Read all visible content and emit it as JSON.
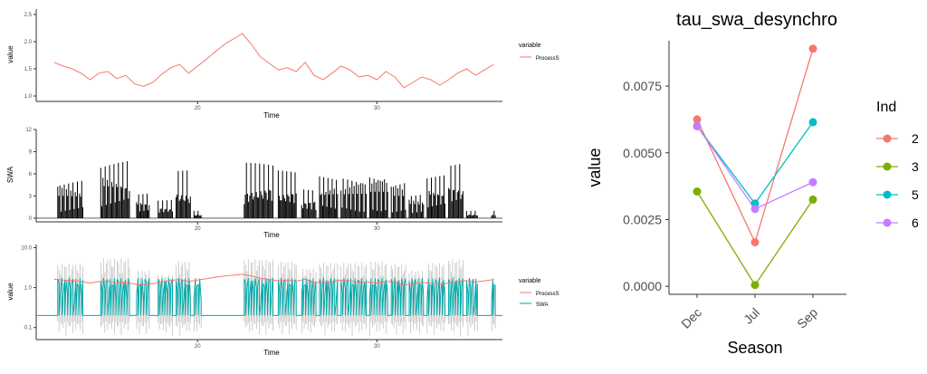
{
  "colors": {
    "processS": "#F8766D",
    "swa": "#00A9A9",
    "ind2": "#F8766D",
    "ind3": "#7CAE00",
    "ind5": "#00BFC4",
    "ind6": "#C77CFF",
    "axis": "#333333",
    "tick_text": "#4d4d4d"
  },
  "chart_data": [
    {
      "type": "line",
      "id": "panel-process-s",
      "xlabel": "Time",
      "ylabel": "value",
      "xlim": [
        11,
        37
      ],
      "ylim": [
        0.9,
        2.6
      ],
      "x_ticks": [
        "20",
        "30"
      ],
      "y_ticks": [
        "1.0",
        "1.5",
        "2.0",
        "2.5"
      ],
      "legend": {
        "title": "variable",
        "entries": [
          "ProcessS"
        ],
        "placement": "right"
      },
      "grid": false,
      "series": [
        {
          "name": "ProcessS",
          "x": [
            12.0,
            12.5,
            13.0,
            13.5,
            14.0,
            14.5,
            15.0,
            15.5,
            16.0,
            16.5,
            17.0,
            17.5,
            18.0,
            18.5,
            19.0,
            19.5,
            20.0,
            20.5,
            21.0,
            21.5,
            22.0,
            22.5,
            23.0,
            23.5,
            24.0,
            24.5,
            25.0,
            25.5,
            26.0,
            26.5,
            27.0,
            27.5,
            28.0,
            28.5,
            29.0,
            29.5,
            30.0,
            30.5,
            31.0,
            31.5,
            32.0,
            32.5,
            33.0,
            33.5,
            34.0,
            34.5,
            35.0,
            35.5,
            36.0,
            36.5
          ],
          "values": [
            1.62,
            1.55,
            1.5,
            1.42,
            1.3,
            1.42,
            1.45,
            1.32,
            1.38,
            1.22,
            1.18,
            1.25,
            1.4,
            1.52,
            1.58,
            1.42,
            1.55,
            1.68,
            1.82,
            1.95,
            2.05,
            2.15,
            1.95,
            1.72,
            1.6,
            1.48,
            1.52,
            1.45,
            1.62,
            1.38,
            1.3,
            1.42,
            1.55,
            1.48,
            1.35,
            1.38,
            1.3,
            1.45,
            1.35,
            1.15,
            1.25,
            1.35,
            1.3,
            1.2,
            1.3,
            1.42,
            1.5,
            1.38,
            1.48,
            1.58
          ]
        }
      ]
    },
    {
      "type": "bar",
      "id": "panel-swa",
      "xlabel": "Time",
      "ylabel": "SWA",
      "xlim": [
        11,
        37
      ],
      "ylim": [
        -0.5,
        12
      ],
      "x_ticks": [
        "20",
        "30"
      ],
      "y_ticks": [
        "0",
        "3",
        "6",
        "9",
        "12"
      ],
      "grid": false,
      "bursts": [
        {
          "start": 12.2,
          "end": 13.6,
          "peak": 5.5
        },
        {
          "start": 14.6,
          "end": 16.2,
          "peak": 8.0
        },
        {
          "start": 16.6,
          "end": 17.3,
          "peak": 3.5
        },
        {
          "start": 17.8,
          "end": 18.6,
          "peak": 2.5
        },
        {
          "start": 18.8,
          "end": 19.6,
          "peak": 6.5
        },
        {
          "start": 19.8,
          "end": 20.2,
          "peak": 1.0
        },
        {
          "start": 22.6,
          "end": 24.2,
          "peak": 7.5
        },
        {
          "start": 24.5,
          "end": 25.5,
          "peak": 6.5
        },
        {
          "start": 25.8,
          "end": 26.6,
          "peak": 4.0
        },
        {
          "start": 26.8,
          "end": 27.8,
          "peak": 6.0
        },
        {
          "start": 28.0,
          "end": 29.4,
          "peak": 6.0
        },
        {
          "start": 29.6,
          "end": 30.6,
          "peak": 6.5
        },
        {
          "start": 30.8,
          "end": 31.6,
          "peak": 5.5
        },
        {
          "start": 31.8,
          "end": 32.6,
          "peak": 3.5
        },
        {
          "start": 32.8,
          "end": 33.8,
          "peak": 6.0
        },
        {
          "start": 34.0,
          "end": 34.8,
          "peak": 7.5
        },
        {
          "start": 35.0,
          "end": 35.6,
          "peak": 1.0
        },
        {
          "start": 36.4,
          "end": 36.6,
          "peak": 1.0
        }
      ]
    },
    {
      "type": "line",
      "id": "panel-log-combined",
      "xlabel": "Time",
      "ylabel": "value",
      "xlim": [
        11,
        37
      ],
      "ylim": [
        0.05,
        12
      ],
      "yscale": "log",
      "x_ticks": [
        "20",
        "30"
      ],
      "y_ticks": [
        "0.1",
        "1.0",
        "10.0"
      ],
      "legend": {
        "title": "variable",
        "entries": [
          "ProcessS",
          "SWA"
        ],
        "placement": "right"
      },
      "grid": false,
      "series": [
        {
          "name": "ProcessS",
          "note_source": "same as panel-process-s"
        },
        {
          "name": "SWA",
          "baseline": 0.2
        }
      ]
    },
    {
      "type": "line",
      "id": "panel-tau",
      "title": "tau_swa_desynchro",
      "xlabel": "Season",
      "ylabel": "value",
      "categories": [
        "Dec",
        "Jul",
        "Sep"
      ],
      "ylim": [
        -0.0003,
        0.0092
      ],
      "y_ticks": [
        "0.0000",
        "0.0025",
        "0.0050",
        "0.0075"
      ],
      "legend": {
        "title": "Ind",
        "placement": "right"
      },
      "grid": false,
      "series": [
        {
          "name": "2",
          "values": [
            0.00625,
            0.00165,
            0.0089
          ]
        },
        {
          "name": "3",
          "values": [
            0.00355,
            5e-05,
            0.00325
          ]
        },
        {
          "name": "5",
          "values": [
            0.006,
            0.0031,
            0.00615
          ]
        },
        {
          "name": "6",
          "values": [
            0.006,
            0.0029,
            0.0039
          ]
        }
      ]
    }
  ]
}
